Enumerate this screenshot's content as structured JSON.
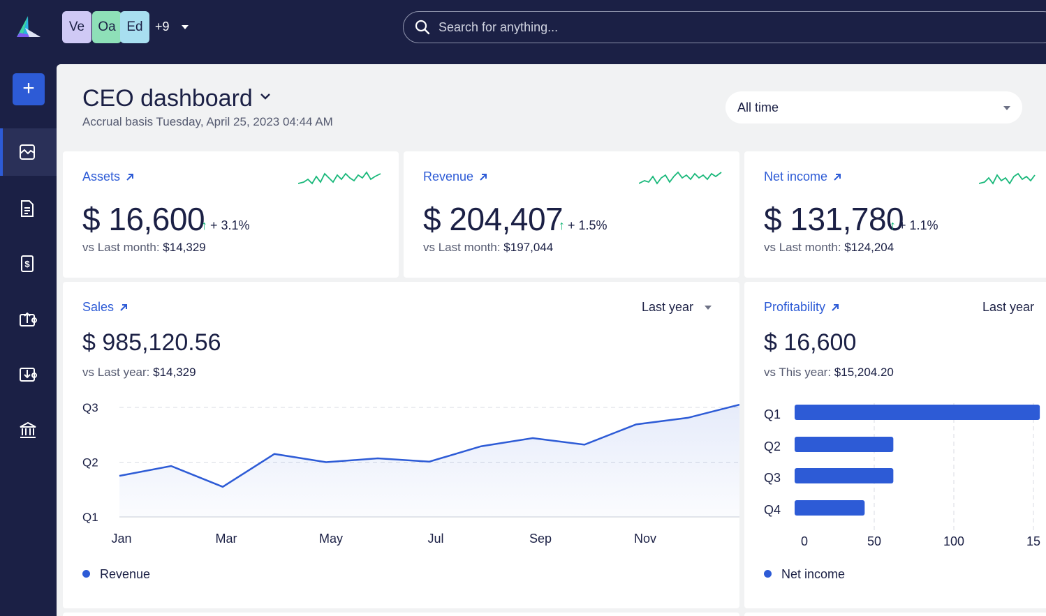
{
  "header": {
    "avatars": [
      {
        "initials": "Ve",
        "color": "#cfc9f5"
      },
      {
        "initials": "Oa",
        "color": "#8ee0b8"
      },
      {
        "initials": "Ed",
        "color": "#a8dff0"
      }
    ],
    "more_count": "+9",
    "search_placeholder": "Search for anything..."
  },
  "sidebar": {
    "items": [
      {
        "icon": "dashboard-icon",
        "active": true
      },
      {
        "icon": "document-icon",
        "active": false
      },
      {
        "icon": "invoice-icon",
        "active": false
      },
      {
        "icon": "upload-icon",
        "active": false
      },
      {
        "icon": "download-icon",
        "active": false
      },
      {
        "icon": "bank-icon",
        "active": false
      }
    ]
  },
  "dashboard": {
    "title": "CEO dashboard",
    "subtitle": "Accrual basis Tuesday, April 25, 2023 04:44 AM",
    "range": "All time"
  },
  "kpis": [
    {
      "label": "Assets",
      "value": "$ 16,600",
      "change": "+ 3.1%",
      "vs_label": "vs Last month:",
      "vs_value": "$14,329"
    },
    {
      "label": "Revenue",
      "value": "$ 204,407",
      "change": "+ 1.5%",
      "vs_label": "vs Last month:",
      "vs_value": "$197,044"
    },
    {
      "label": "Net income",
      "value": "$ 131,780",
      "change": "+ 1.1%",
      "vs_label": "vs Last month:",
      "vs_value": "$124,204"
    }
  ],
  "sales": {
    "label": "Sales",
    "period": "Last year",
    "value": "$ 985,120.56",
    "vs_label": "vs Last year:",
    "vs_value": "$14,329",
    "legend": "Revenue"
  },
  "profitability": {
    "label": "Profitability",
    "period": "Last year",
    "value": "$ 16,600",
    "vs_label": "vs This year:",
    "vs_value": "$15,204.20",
    "legend": "Net income"
  },
  "colors": {
    "accent": "#2d5bd6",
    "positive": "#19b87a",
    "navy": "#1b2045"
  },
  "chart_data": [
    {
      "type": "area",
      "title": "",
      "x_ticks": [
        "Jan",
        "Mar",
        "May",
        "Jul",
        "Sep",
        "Nov"
      ],
      "y_ticks": [
        "Q1",
        "Q2",
        "Q3"
      ],
      "series": [
        {
          "name": "Revenue",
          "values": [
            1.75,
            1.93,
            1.55,
            2.15,
            2.0,
            2.07,
            2.01,
            2.29,
            2.44,
            2.32,
            2.69,
            2.81,
            3.05
          ]
        }
      ],
      "ylim": [
        1,
        3
      ],
      "grid": true,
      "legend": "bottom-left"
    },
    {
      "type": "bar",
      "orientation": "horizontal",
      "categories": [
        "Q1",
        "Q2",
        "Q3",
        "Q4"
      ],
      "series": [
        {
          "name": "Net income",
          "values": [
            154,
            62,
            62,
            44
          ]
        }
      ],
      "x_ticks": [
        "0",
        "50",
        "100",
        "15"
      ],
      "grid": true,
      "legend": "bottom-left"
    }
  ]
}
